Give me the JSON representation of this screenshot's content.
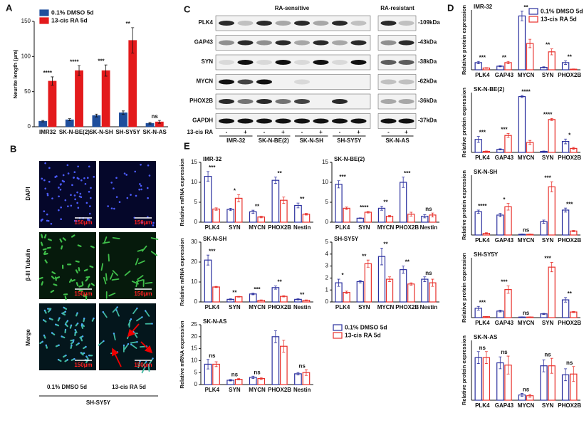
{
  "chart_data": [
    {
      "type": "bar",
      "panel": "A",
      "y_label": "Neurite length (μm)",
      "style": "filled",
      "legend": "upper left",
      "categories": [
        "IMR32",
        "SK-N-BE(2)",
        "SK-N-SH",
        "SH-SY5Y",
        "SK-N-AS"
      ],
      "series": [
        {
          "name": "0.1% DMSO 5d",
          "color": "#1f4e9c",
          "values": [
            8,
            10,
            16,
            20,
            5
          ],
          "errors": [
            1,
            1.5,
            2,
            2.5,
            1
          ]
        },
        {
          "name": "13-cis RA 5d",
          "color": "#e31a1c",
          "values": [
            65,
            80,
            80,
            123,
            7
          ],
          "errors": [
            6,
            7,
            8,
            18,
            2
          ]
        }
      ],
      "significance": [
        "****",
        "****",
        "***",
        "**",
        "ns"
      ],
      "ylim": [
        0,
        150
      ],
      "yticks": [
        0,
        50,
        100,
        150
      ]
    },
    {
      "type": "bar",
      "panel": "D",
      "cell_line": "IMR-32",
      "y_label": "Relative protein expression",
      "style": "outline",
      "legend": "upper right",
      "categories": [
        "PLK4",
        "GAP43",
        "MYCN",
        "SYN",
        "PHOX2B"
      ],
      "series": [
        {
          "name": "0.1% DMSO 5d",
          "color": "#2a2f9e",
          "values": [
            0.6,
            0.3,
            4.5,
            0.2,
            0.6
          ],
          "errors": [
            0.1,
            0.05,
            0.4,
            0.05,
            0.15
          ]
        },
        {
          "name": "13-cis RA 5d",
          "color": "#e8302b",
          "values": [
            0.15,
            0.6,
            2.2,
            1.5,
            0.05
          ],
          "errors": [
            0.03,
            0.1,
            0.35,
            0.25,
            0.02
          ]
        }
      ],
      "significance": [
        "***",
        "**",
        "**",
        "**",
        "**"
      ],
      "ylim": [
        0,
        5
      ]
    },
    {
      "type": "bar",
      "cell_line": "SK-N-BE(2)",
      "y_label": "Relative protein expression",
      "style": "outline",
      "categories": [
        "PLK4",
        "GAP43",
        "MYCN",
        "SYN",
        "PHOX2B"
      ],
      "series": [
        {
          "color": "#2a2f9e",
          "values": [
            0.65,
            0.15,
            2.8,
            0.05,
            0.55
          ],
          "errors": [
            0.15,
            0.03,
            0.05,
            0.02,
            0.12
          ]
        },
        {
          "color": "#e8302b",
          "values": [
            0.05,
            0.85,
            0.5,
            1.65,
            0.2
          ],
          "errors": [
            0.02,
            0.1,
            0.1,
            0.05,
            0.05
          ]
        }
      ],
      "significance": [
        "***",
        "***",
        "****",
        "****",
        "*"
      ],
      "ylim": [
        0,
        3
      ]
    },
    {
      "type": "bar",
      "cell_line": "SK-N-SH",
      "y_label": "Relative protein expression",
      "style": "outline",
      "categories": [
        "PLK4",
        "GAP43",
        "MYCN",
        "SYN",
        "PHOX2B"
      ],
      "series": [
        {
          "color": "#2a2f9e",
          "values": [
            0.7,
            0.6,
            0.02,
            0.4,
            0.75
          ],
          "errors": [
            0.05,
            0.05,
            0.01,
            0.05,
            0.06
          ]
        },
        {
          "color": "#e8302b",
          "values": [
            0.05,
            0.85,
            0.02,
            1.45,
            0.12
          ],
          "errors": [
            0.02,
            0.1,
            0.01,
            0.15,
            0.02
          ]
        }
      ],
      "significance": [
        "****",
        "*",
        "ns",
        "***",
        "***"
      ],
      "ylim": [
        0,
        1.8
      ]
    },
    {
      "type": "bar",
      "cell_line": "SH-SY5Y",
      "y_label": "Relative protein expression",
      "style": "outline",
      "categories": [
        "PLK4",
        "GAP43",
        "MYCN",
        "SYN",
        "PHOX2B"
      ],
      "series": [
        {
          "color": "#2a2f9e",
          "values": [
            0.5,
            0.35,
            0.03,
            0.2,
            0.95
          ],
          "errors": [
            0.1,
            0.05,
            0.01,
            0.03,
            0.12
          ]
        },
        {
          "color": "#e8302b",
          "values": [
            0.05,
            1.5,
            0.03,
            2.7,
            0.3
          ],
          "errors": [
            0.01,
            0.2,
            0.01,
            0.25,
            0.03
          ]
        }
      ],
      "significance": [
        "***",
        "***",
        "ns",
        "***",
        "**"
      ],
      "ylim": [
        0,
        3.2
      ]
    },
    {
      "type": "bar",
      "cell_line": "SK-N-AS",
      "y_label": "Relative protein expression",
      "style": "outline",
      "categories": [
        "PLK4",
        "GAP43",
        "MYCN",
        "SYN",
        "PHOX2B"
      ],
      "series": [
        {
          "color": "#2a2f9e",
          "values": [
            0.57,
            0.5,
            0.07,
            0.46,
            0.34
          ],
          "errors": [
            0.08,
            0.08,
            0.02,
            0.08,
            0.08
          ]
        },
        {
          "color": "#e8302b",
          "values": [
            0.57,
            0.47,
            0.06,
            0.46,
            0.35
          ],
          "errors": [
            0.08,
            0.12,
            0.02,
            0.1,
            0.1
          ]
        }
      ],
      "significance": [
        "ns",
        "ns",
        "ns",
        "ns",
        "ns"
      ],
      "ylim": [
        0,
        0.8
      ]
    },
    {
      "type": "bar",
      "panel": "E",
      "cell_line": "IMR-32",
      "y_label": "Relative mRNA expression",
      "style": "outline",
      "categories": [
        "PLK4",
        "SYN",
        "MYCN",
        "PHOX2B",
        "Nestin"
      ],
      "series": [
        {
          "color": "#2a2f9e",
          "values": [
            11.5,
            3.2,
            2.6,
            10.5,
            4.2
          ],
          "errors": [
            1.2,
            0.3,
            0.4,
            0.8,
            0.6
          ]
        },
        {
          "color": "#e8302b",
          "values": [
            3.3,
            6,
            1.3,
            5.5,
            2
          ],
          "errors": [
            0.3,
            0.9,
            0.2,
            0.8,
            0.2
          ]
        }
      ],
      "significance": [
        "***",
        "*",
        "**",
        "**",
        "**"
      ],
      "ylim": [
        0,
        15
      ],
      "yticks": [
        0,
        5,
        10,
        15
      ]
    },
    {
      "type": "bar",
      "cell_line": "SK-N-BE(2)",
      "style": "outline",
      "categories": [
        "PLK4",
        "SYN",
        "MYCN",
        "PHOX2B",
        "Nestin"
      ],
      "series": [
        {
          "color": "#2a2f9e",
          "values": [
            9.5,
            1,
            3.5,
            10,
            1.5
          ],
          "errors": [
            0.9,
            0.1,
            0.5,
            1.3,
            0.4
          ]
        },
        {
          "color": "#e8302b",
          "values": [
            3.5,
            2.5,
            1.5,
            2,
            1.8
          ],
          "errors": [
            0.3,
            0.2,
            0.2,
            0.5,
            0.5
          ]
        }
      ],
      "significance": [
        "***",
        "****",
        "**",
        "***",
        "ns"
      ],
      "ylim": [
        0,
        15
      ],
      "yticks": [
        0,
        5,
        10,
        15
      ]
    },
    {
      "type": "bar",
      "cell_line": "SK-N-SH",
      "y_label": "Relative mRNA expression",
      "style": "outline",
      "categories": [
        "PLK4",
        "SYN",
        "MYCN",
        "PHOX2B",
        "Nestin"
      ],
      "series": [
        {
          "color": "#2a2f9e",
          "values": [
            21,
            1.3,
            4,
            7.2,
            1.3
          ],
          "errors": [
            2.5,
            0.3,
            0.4,
            0.8,
            0.3
          ]
        },
        {
          "color": "#e8302b",
          "values": [
            7.5,
            2.6,
            0.8,
            2.8,
            0.8
          ],
          "errors": [
            0.3,
            0.2,
            0.2,
            0.3,
            0.2
          ]
        }
      ],
      "significance": [
        "***",
        "**",
        "***",
        "**",
        "**"
      ],
      "ylim": [
        0,
        30
      ],
      "yticks": [
        0,
        10,
        20,
        30
      ]
    },
    {
      "type": "bar",
      "cell_line": "SH-SY5Y",
      "style": "outline",
      "categories": [
        "PLK4",
        "SYN",
        "MYCN",
        "PHOX2B",
        "Nestin"
      ],
      "series": [
        {
          "color": "#2a2f9e",
          "values": [
            1.6,
            1.7,
            3.8,
            2.7,
            1.9
          ],
          "errors": [
            0.3,
            0.1,
            0.7,
            0.3,
            0.2
          ]
        },
        {
          "color": "#e8302b",
          "values": [
            0.8,
            3.2,
            1.9,
            1.5,
            1.6
          ],
          "errors": [
            0.1,
            0.3,
            0.2,
            0.1,
            0.3
          ]
        }
      ],
      "significance": [
        "*",
        "**",
        "**",
        "**",
        "ns"
      ],
      "ylim": [
        0,
        5
      ],
      "yticks": [
        0,
        1,
        2,
        3,
        4,
        5
      ]
    },
    {
      "type": "bar",
      "cell_line": "SK-N-AS",
      "y_label": "Relative mRNA expression",
      "style": "outline",
      "legend": "right",
      "categories": [
        "PLK4",
        "SYN",
        "MYCN",
        "PHOX2B",
        "Nestin"
      ],
      "series": [
        {
          "name": "0.1% DMSO 5d",
          "color": "#2a2f9e",
          "values": [
            8.5,
            1.8,
            3,
            20,
            4.5
          ],
          "errors": [
            2,
            0.3,
            0.5,
            2.5,
            0.5
          ]
        },
        {
          "name": "13-cis RA 5d",
          "color": "#e8302b",
          "values": [
            8.5,
            2.2,
            2.5,
            16,
            5
          ],
          "errors": [
            1,
            0.3,
            0.4,
            2.5,
            1.2
          ]
        }
      ],
      "significance": [
        "ns",
        "ns",
        "ns",
        null,
        "ns"
      ],
      "ylim": [
        0,
        25
      ],
      "yticks": [
        0,
        5,
        10,
        15,
        20,
        25
      ]
    }
  ],
  "panel_b": {
    "panel": "B",
    "rows": [
      "DAPI",
      "β-III Tubulin",
      "Merge"
    ],
    "columns": [
      "0.1% DMSO 5d",
      "13-cis RA 5d"
    ],
    "scale_bars": [
      "150μm",
      "150μm",
      "150μm",
      "150μm",
      "150μm",
      "150μm"
    ],
    "cell_line": "SH-SY5Y"
  },
  "panel_c": {
    "panel": "C",
    "groups": [
      "RA-sensitive",
      "RA-resistant"
    ],
    "rows": [
      {
        "label": "PLK4",
        "kda": "-109kDa"
      },
      {
        "label": "GAP43",
        "kda": "-43kDa"
      },
      {
        "label": "SYN",
        "kda": "-38kDa"
      },
      {
        "label": "MYCN",
        "kda": "-62kDa"
      },
      {
        "label": "PHOX2B",
        "kda": "-36kDa"
      },
      {
        "label": "GAPDH",
        "kda": "-37kDa"
      }
    ],
    "treatment": "13-cis RA",
    "signs": [
      "-",
      "+",
      "-",
      "+",
      "-",
      "+",
      "-",
      "+",
      "-",
      "+"
    ],
    "lanes": [
      "IMR-32",
      "SK-N-BE(2)",
      "SK-N-SH",
      "SH-SY5Y",
      "SK-N-AS"
    ]
  }
}
